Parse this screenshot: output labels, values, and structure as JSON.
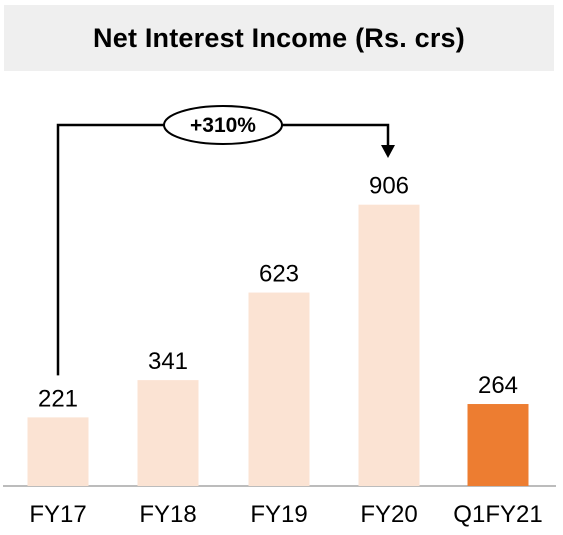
{
  "chart_data": {
    "type": "bar",
    "title": "Net Interest Income (Rs. crs)",
    "categories": [
      "FY17",
      "FY18",
      "FY19",
      "FY20",
      "Q1FY21"
    ],
    "values": [
      221,
      341,
      623,
      906,
      264
    ],
    "ylim": [
      0,
      1000
    ],
    "grid": false,
    "bar_colors": [
      "#fbe3d3",
      "#fbe3d3",
      "#fbe3d3",
      "#fbe3d3",
      "#ed7d31"
    ],
    "annotation": {
      "text": "+310%",
      "from": "FY17",
      "to": "FY20"
    }
  }
}
